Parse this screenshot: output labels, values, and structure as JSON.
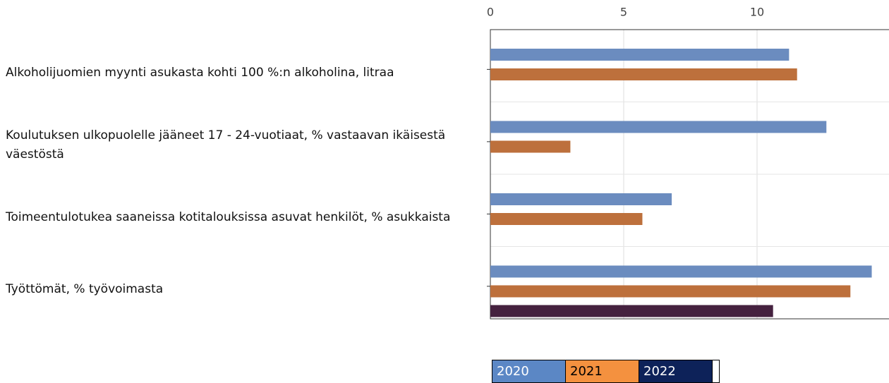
{
  "chart_data": {
    "type": "barh",
    "categories": [
      "Alkoholijuomien myynti asukasta kohti 100 %:n alkoholina, litraa",
      "Koulutuksen ulkopuolelle jääneet 17 - 24-vuotiaat, % vastaavan ikäisestä väestöstä",
      "Toimeentulotukea saaneissa kotitalouksissa asuvat henkilöt, % asukkaista",
      "Työttömät, % työvoimasta"
    ],
    "series": [
      {
        "name": "2020",
        "color": "#6b8cbf",
        "legend_color": "#5b87c5",
        "values": [
          11.2,
          12.6,
          6.8,
          14.3
        ]
      },
      {
        "name": "2021",
        "color": "#bd703c",
        "legend_color": "#f4913f",
        "values": [
          11.5,
          3.0,
          5.7,
          13.5
        ]
      },
      {
        "name": "2022",
        "color": "#45213f",
        "legend_color": "#0d2259",
        "values": [
          null,
          null,
          null,
          10.6
        ]
      }
    ],
    "xlim": [
      0,
      15
    ],
    "xticks": [
      0,
      5,
      10
    ],
    "grid": true
  }
}
